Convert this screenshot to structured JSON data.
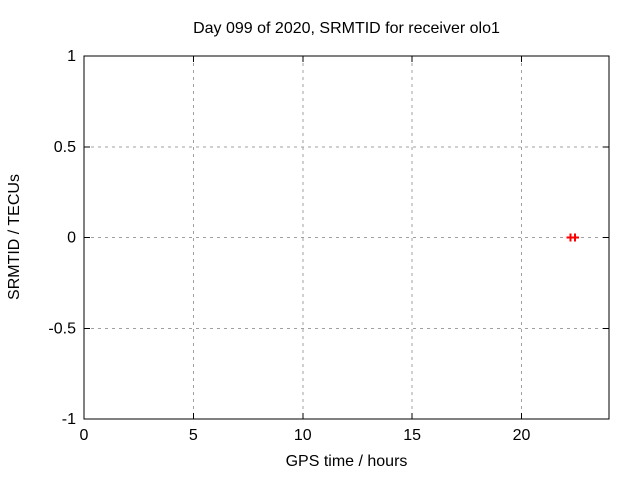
{
  "chart_data": {
    "type": "scatter",
    "title": "Day 099 of 2020, SRMTID for receiver olo1",
    "xlabel": "GPS time / hours",
    "ylabel": "SRMTID / TECUs",
    "xlim": [
      0,
      24
    ],
    "ylim": [
      -1,
      1
    ],
    "grid": true,
    "legend": "none",
    "xticks": [
      {
        "v": 0,
        "label": "0"
      },
      {
        "v": 5,
        "label": "5"
      },
      {
        "v": 10,
        "label": "10"
      },
      {
        "v": 15,
        "label": "15"
      },
      {
        "v": 20,
        "label": "20"
      }
    ],
    "yticks": [
      {
        "v": -1,
        "label": "-1"
      },
      {
        "v": -0.5,
        "label": "-0.5"
      },
      {
        "v": 0,
        "label": "0"
      },
      {
        "v": 0.5,
        "label": "0.5"
      },
      {
        "v": 1,
        "label": "1"
      }
    ],
    "series": [
      {
        "marker": "plus",
        "color": "#ff0000",
        "points": [
          {
            "x": 22.25,
            "y": 0
          },
          {
            "x": 22.45,
            "y": 0
          }
        ]
      }
    ],
    "colors": {
      "background": "#ffffff",
      "axis": "#000000",
      "grid": "#a0a0a0",
      "text": "#000000"
    }
  }
}
